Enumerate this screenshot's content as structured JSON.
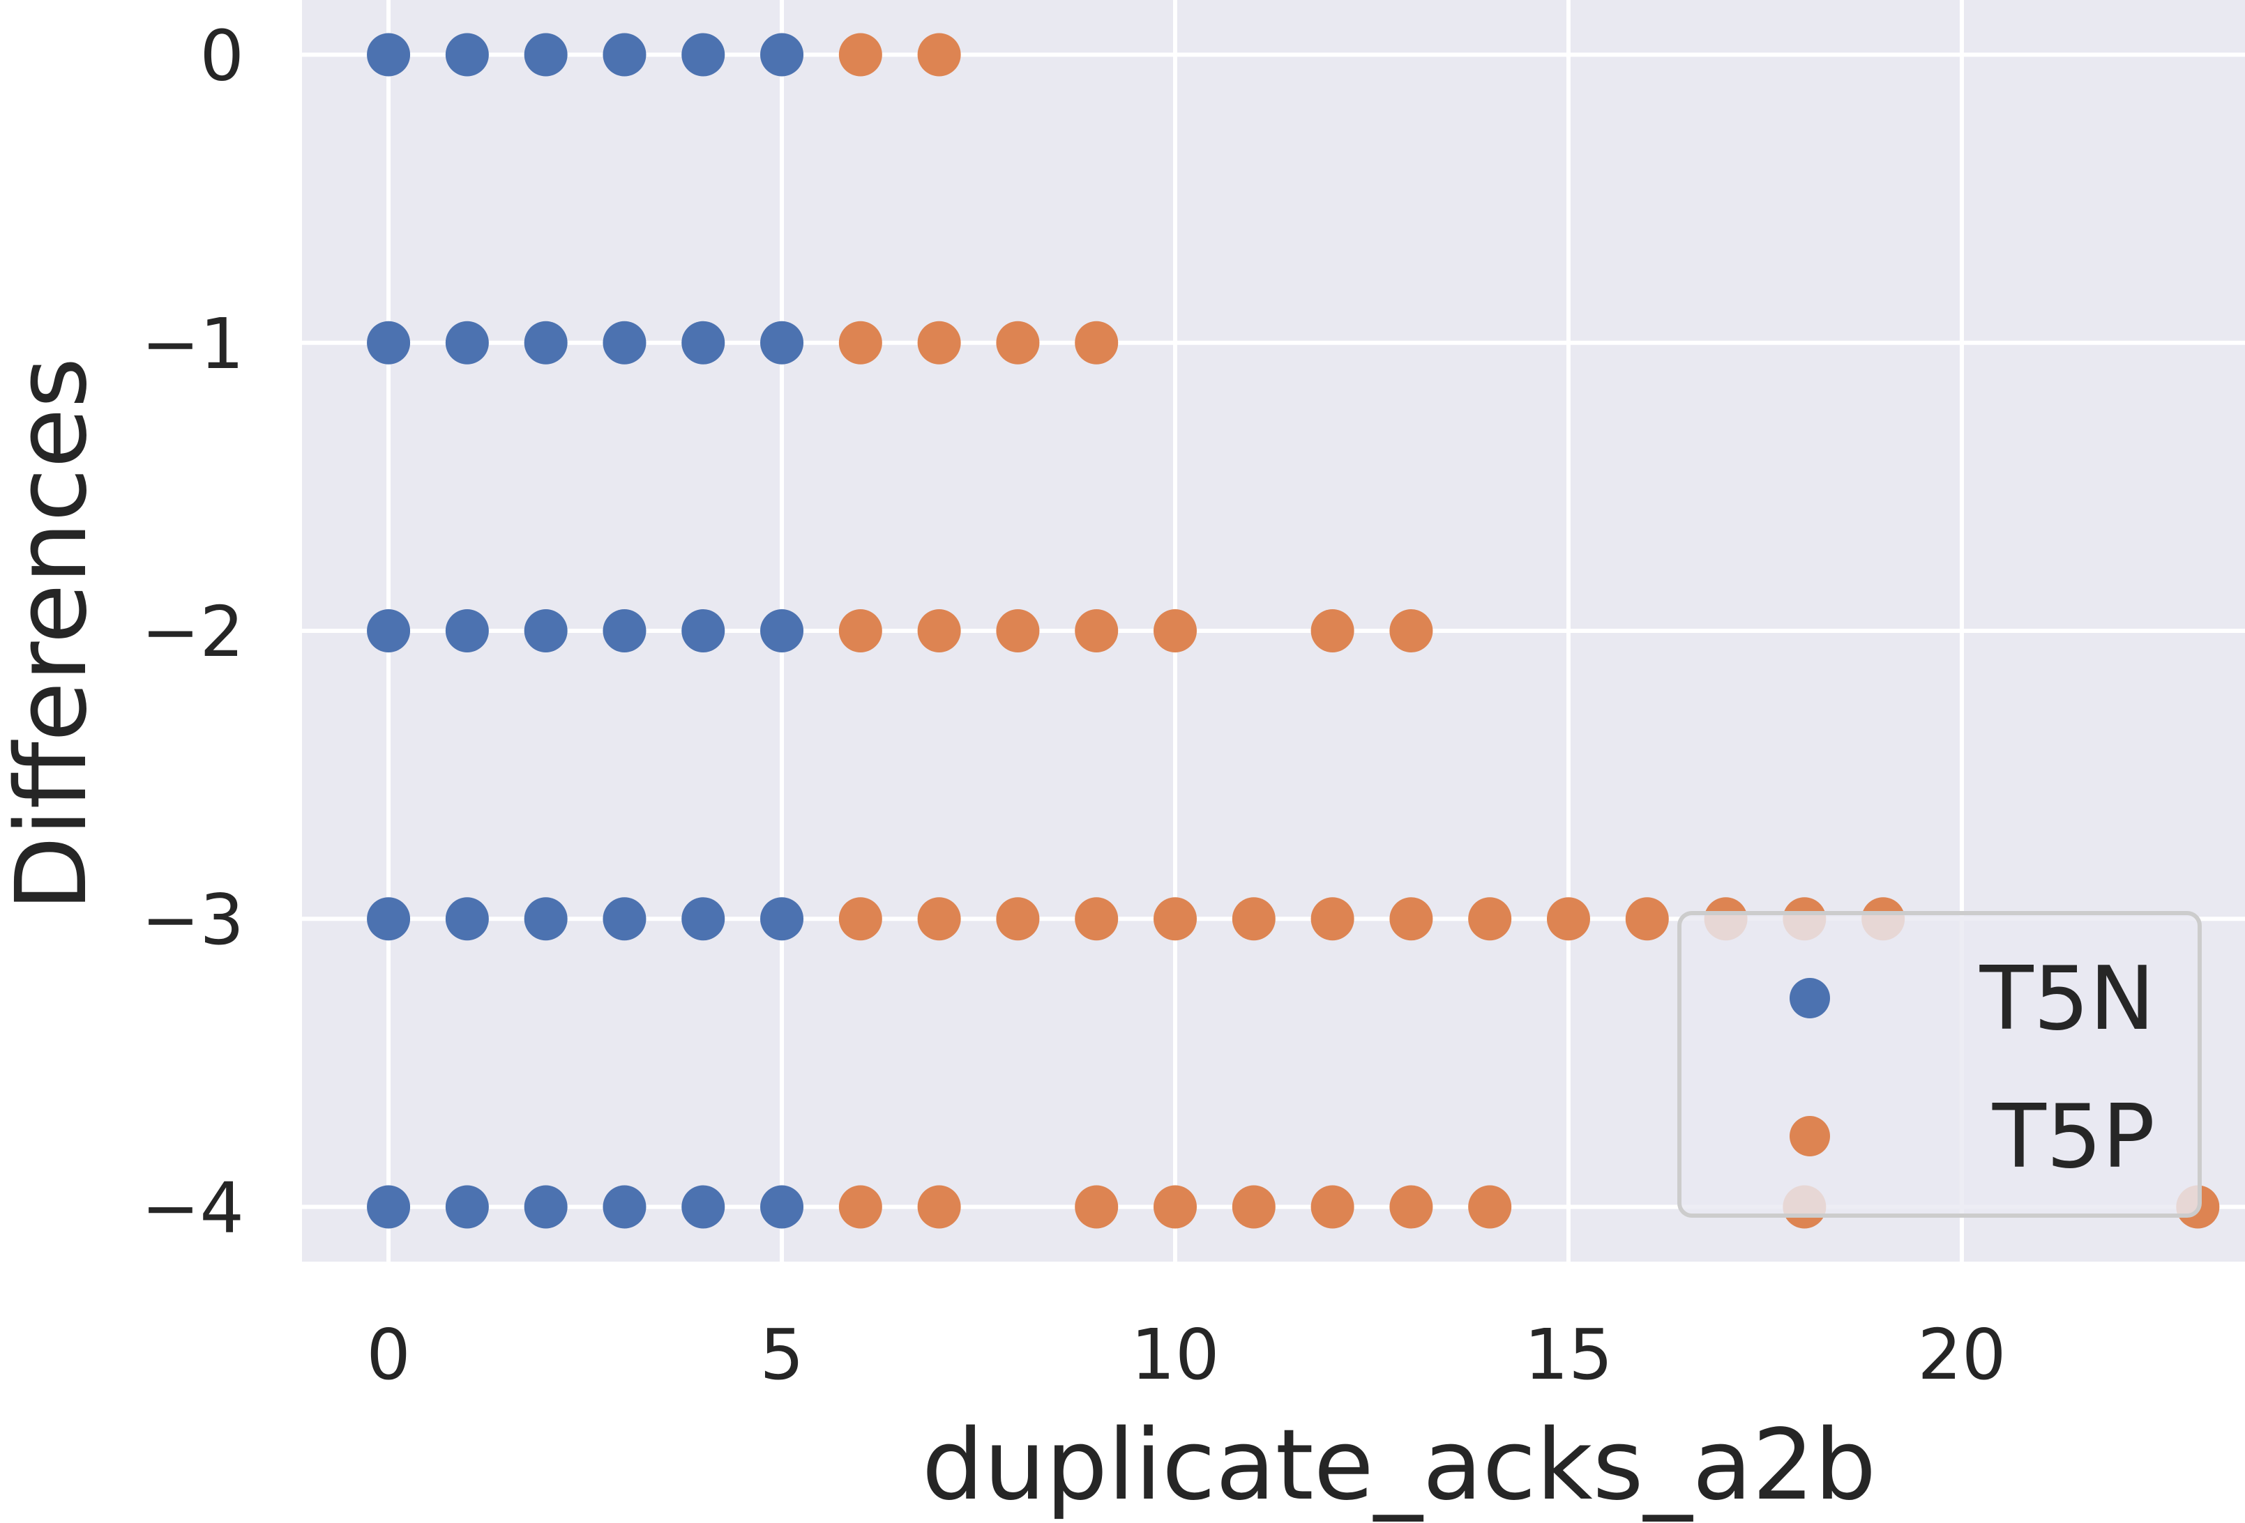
{
  "chart_data": {
    "type": "scatter",
    "xlabel": "duplicate_acks_a2b",
    "ylabel": "Differences",
    "xlim": [
      -1.1,
      23.6
    ],
    "ylim": [
      -4.19,
      0.19
    ],
    "xticks": [
      0,
      5,
      10,
      15,
      20
    ],
    "xtick_labels": [
      "0",
      "5",
      "10",
      "15",
      "20"
    ],
    "yticks": [
      0,
      -1,
      -2,
      -3,
      -4
    ],
    "ytick_labels": [
      "0",
      "−1",
      "−2",
      "−3",
      "−4"
    ],
    "grid": true,
    "background": "#e9e9f1",
    "legend_position": "lower right",
    "series": [
      {
        "name": "T5N",
        "color": "#4c72b0",
        "points": [
          [
            0,
            0
          ],
          [
            1,
            0
          ],
          [
            2,
            0
          ],
          [
            3,
            0
          ],
          [
            4,
            0
          ],
          [
            5,
            0
          ],
          [
            0,
            -1
          ],
          [
            1,
            -1
          ],
          [
            2,
            -1
          ],
          [
            3,
            -1
          ],
          [
            4,
            -1
          ],
          [
            5,
            -1
          ],
          [
            0,
            -2
          ],
          [
            1,
            -2
          ],
          [
            2,
            -2
          ],
          [
            3,
            -2
          ],
          [
            4,
            -2
          ],
          [
            5,
            -2
          ],
          [
            0,
            -3
          ],
          [
            1,
            -3
          ],
          [
            2,
            -3
          ],
          [
            3,
            -3
          ],
          [
            4,
            -3
          ],
          [
            5,
            -3
          ],
          [
            0,
            -4
          ],
          [
            1,
            -4
          ],
          [
            2,
            -4
          ],
          [
            3,
            -4
          ],
          [
            4,
            -4
          ],
          [
            5,
            -4
          ]
        ]
      },
      {
        "name": "T5P",
        "color": "#dd8452",
        "points": [
          [
            6,
            0
          ],
          [
            7,
            0
          ],
          [
            6,
            -1
          ],
          [
            7,
            -1
          ],
          [
            8,
            -1
          ],
          [
            9,
            -1
          ],
          [
            6,
            -2
          ],
          [
            7,
            -2
          ],
          [
            8,
            -2
          ],
          [
            9,
            -2
          ],
          [
            10,
            -2
          ],
          [
            12,
            -2
          ],
          [
            13,
            -2
          ],
          [
            6,
            -3
          ],
          [
            7,
            -3
          ],
          [
            8,
            -3
          ],
          [
            9,
            -3
          ],
          [
            10,
            -3
          ],
          [
            11,
            -3
          ],
          [
            12,
            -3
          ],
          [
            13,
            -3
          ],
          [
            14,
            -3
          ],
          [
            15,
            -3
          ],
          [
            16,
            -3
          ],
          [
            17,
            -3
          ],
          [
            18,
            -3
          ],
          [
            19,
            -3
          ],
          [
            6,
            -4
          ],
          [
            7,
            -4
          ],
          [
            9,
            -4
          ],
          [
            10,
            -4
          ],
          [
            11,
            -4
          ],
          [
            12,
            -4
          ],
          [
            13,
            -4
          ],
          [
            14,
            -4
          ],
          [
            18,
            -4
          ],
          [
            23,
            -4
          ]
        ]
      }
    ]
  }
}
